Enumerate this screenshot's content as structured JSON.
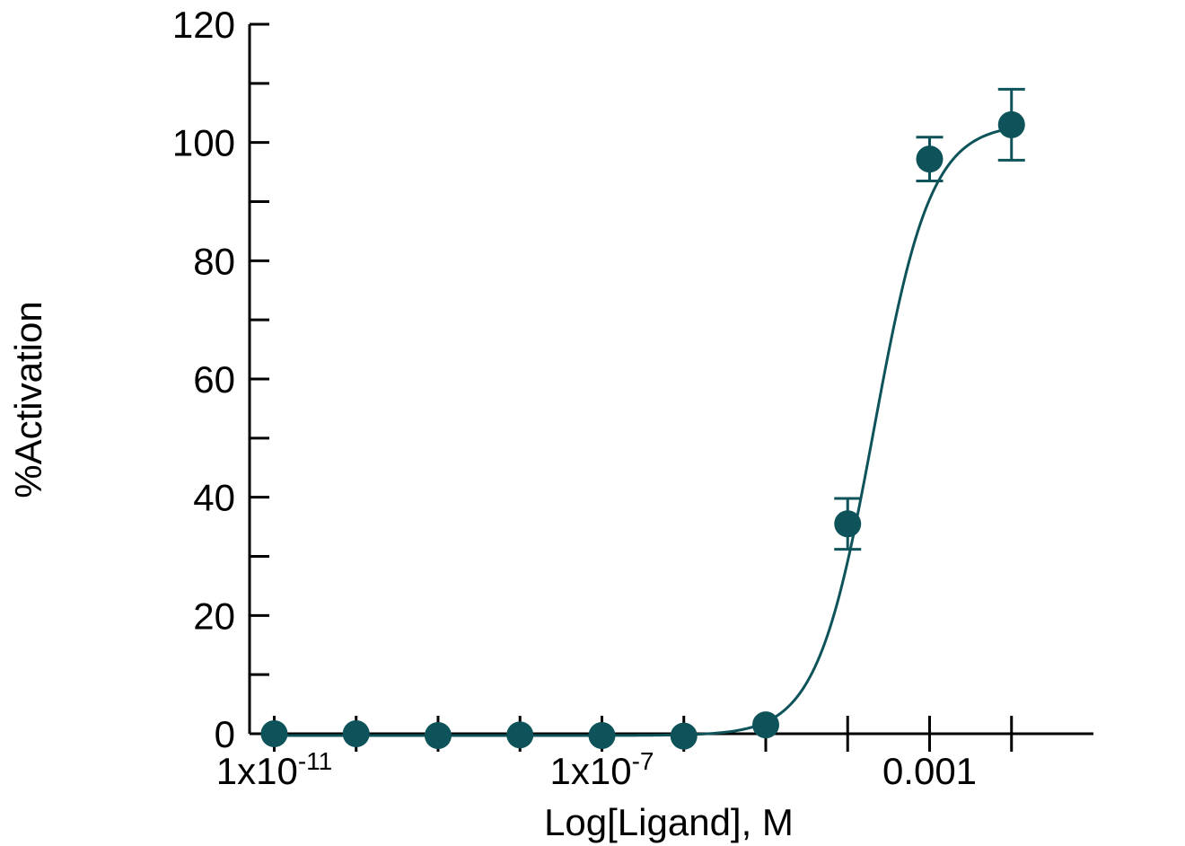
{
  "chart_data": {
    "type": "scatter",
    "title": "",
    "xlabel": "Log[Ligand],  M",
    "ylabel": "%Activation",
    "x_scale": "log",
    "xlim": [
      5e-12,
      0.1
    ],
    "ylim": [
      0,
      120
    ],
    "y_ticks": [
      0,
      20,
      40,
      60,
      80,
      100,
      120
    ],
    "y_tick_labels": [
      "0",
      "20",
      "40",
      "60",
      "80",
      "100",
      "120"
    ],
    "x_ticks_major": [
      1e-11,
      1e-10,
      1e-09,
      1e-08,
      1e-07,
      1e-06,
      1e-05,
      0.0001,
      0.001,
      0.01
    ],
    "x_tick_labels": [
      {
        "value": 1e-11,
        "base": "1x10",
        "exp": "-11"
      },
      {
        "value": 1e-07,
        "base": "1x10",
        "exp": "-7"
      },
      {
        "value": 0.001,
        "text": "0.001"
      }
    ],
    "grid": false,
    "color": "#0d5359",
    "series": [
      {
        "x": [
          1e-11,
          1e-10,
          1e-09,
          1e-08,
          1e-07,
          1e-06,
          1e-05,
          0.0001,
          0.001,
          0.01
        ],
        "y": [
          0,
          0,
          -0.3,
          -0.2,
          -0.3,
          -0.4,
          1.5,
          35.5,
          97.2,
          103.0
        ],
        "error": [
          0,
          0,
          0,
          0,
          0,
          0,
          0,
          4.3,
          3.7,
          6.0
        ]
      }
    ],
    "fit": {
      "model": "sigmoid",
      "bottom": -0.3,
      "top": 103.2,
      "ec50_log": -3.68,
      "hill": 1.25
    }
  }
}
